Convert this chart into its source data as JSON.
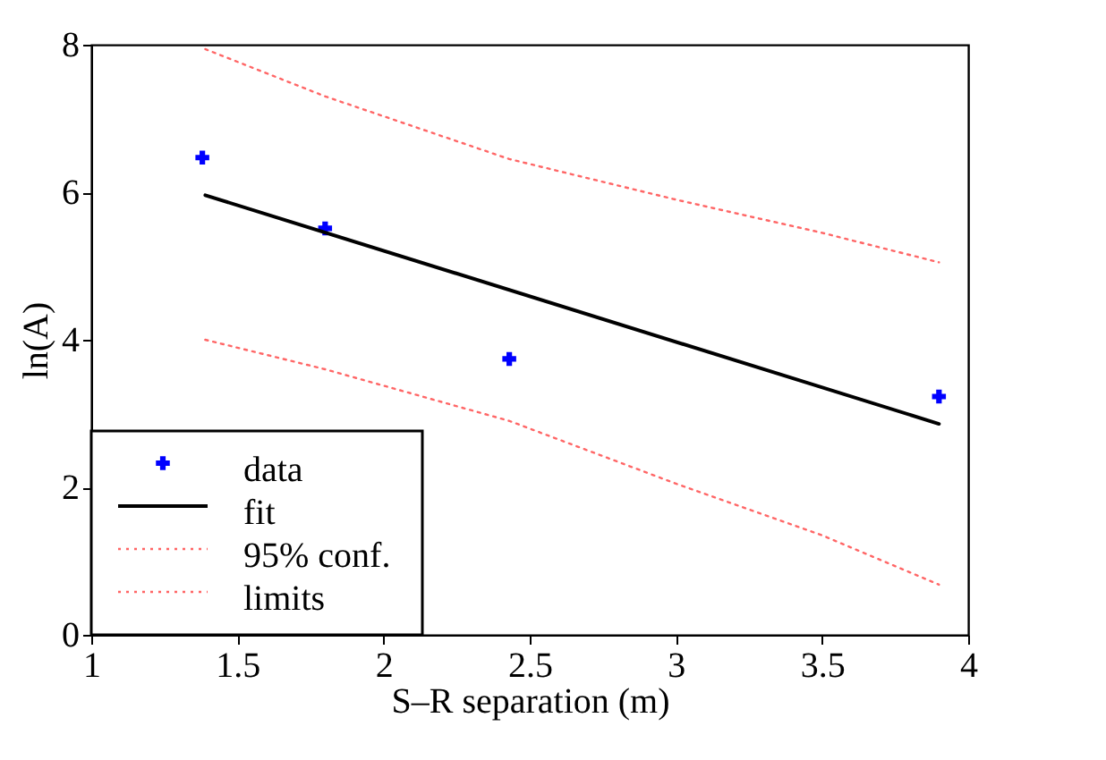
{
  "chart_data": {
    "type": "scatter",
    "xlabel": "S–R separation (m)",
    "ylabel": "ln(A)",
    "xlim": [
      1,
      4
    ],
    "xticks": [
      1,
      1.5,
      2,
      2.5,
      3,
      3.5,
      4
    ],
    "ylim": [
      0,
      8
    ],
    "yticks": [
      0,
      2,
      4,
      6,
      8
    ],
    "grid": false,
    "legend": "bottom left",
    "series": [
      {
        "name": "data",
        "marker": "cross",
        "color": "#0000ff",
        "x": [
          1.38,
          1.8,
          2.43,
          3.9
        ],
        "values": [
          6.47,
          5.51,
          3.74,
          3.23
        ]
      },
      {
        "name": "fit",
        "type": "line",
        "marker": "none",
        "line_style": "solid",
        "color": "#000000",
        "x": [
          1.39,
          3.9
        ],
        "values": [
          5.96,
          2.86
        ]
      },
      {
        "name": "95% conf.",
        "type": "line",
        "marker": "none",
        "line_style": "dotted",
        "color": "#ff6666",
        "x": [
          1.39,
          1.8,
          2.43,
          3.0,
          3.5,
          3.9
        ],
        "values": [
          7.94,
          7.3,
          6.45,
          5.9,
          5.45,
          5.05
        ]
      },
      {
        "name": "limits",
        "type": "line",
        "marker": "none",
        "line_style": "dotted",
        "color": "#ff6666",
        "x": [
          1.39,
          1.8,
          2.43,
          3.0,
          3.5,
          3.9
        ],
        "values": [
          4.0,
          3.6,
          2.9,
          2.05,
          1.35,
          0.68
        ]
      }
    ]
  }
}
